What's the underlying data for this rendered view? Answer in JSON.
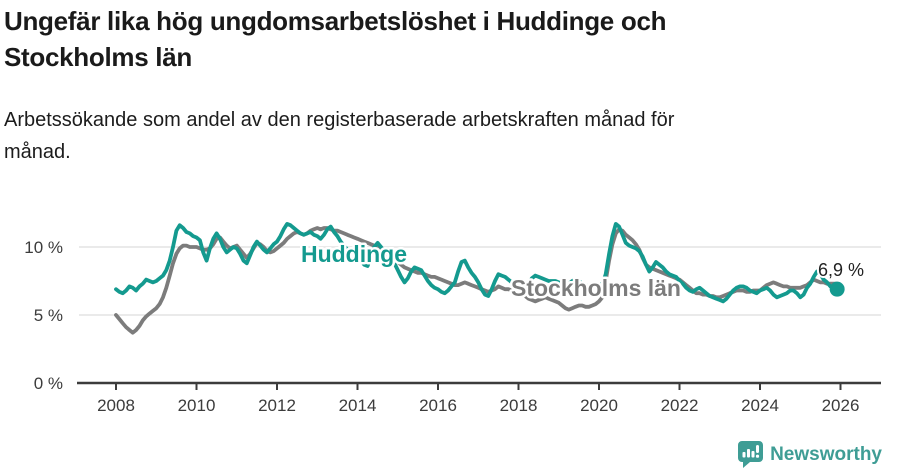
{
  "header": {
    "title": "Ungefär lika hög ungdomsarbetslöshet i Huddinge och Stockholms län",
    "subtitle": "Arbetssökande som andel av den registerbaserade arbetskraften månad för månad."
  },
  "footer": {
    "brand": "Newsworthy",
    "brand_color": "#3f9d95",
    "logo_icon": "bar-chart-speech-bubble-icon"
  },
  "chart_data": {
    "type": "line",
    "title": "Ungefär lika hög ungdomsarbetslöshet i Huddinge och Stockholms län",
    "subtitle": "Arbetssökande som andel av den registerbaserade arbetskraften månad för månad.",
    "unit": "%",
    "x_start_year": 2008,
    "points_per_year": 12,
    "x_axis": {
      "ticks": [
        2008,
        2010,
        2012,
        2014,
        2016,
        2018,
        2020,
        2022,
        2024,
        2026
      ]
    },
    "y_axis": {
      "ticks": [
        {
          "value": 0,
          "label": "0 %"
        },
        {
          "value": 5,
          "label": "5 %"
        },
        {
          "value": 10,
          "label": "10 %"
        }
      ],
      "ylim": [
        0,
        13.1
      ]
    },
    "grid": true,
    "colors": {
      "accent_teal": "#149a8f",
      "neutral_gray": "#7c7c7c",
      "gridline": "#dedede",
      "axis": "#3c3c3c"
    },
    "series": [
      {
        "name": "Huddinge",
        "color": "#149a8f",
        "values": [
          6.9,
          6.7,
          6.6,
          6.8,
          7.1,
          7.0,
          6.8,
          7.1,
          7.3,
          7.6,
          7.5,
          7.4,
          7.5,
          7.7,
          7.9,
          8.3,
          9.0,
          10.0,
          11.2,
          11.6,
          11.4,
          11.1,
          11.0,
          10.8,
          10.7,
          10.5,
          9.6,
          9.0,
          9.9,
          10.6,
          11.0,
          10.6,
          10.0,
          9.6,
          9.8,
          10.0,
          9.9,
          9.5,
          9.0,
          8.8,
          9.4,
          10.0,
          10.4,
          10.1,
          9.8,
          9.6,
          9.9,
          10.2,
          10.4,
          10.8,
          11.3,
          11.7,
          11.6,
          11.4,
          11.2,
          11.0,
          10.9,
          11.0,
          11.1,
          10.9,
          10.8,
          10.6,
          10.9,
          11.3,
          11.5,
          11.1,
          10.8,
          10.4,
          10.1,
          9.8,
          9.7,
          9.6,
          9.4,
          9.0,
          8.7,
          8.6,
          9.3,
          10.0,
          10.3,
          10.0,
          9.7,
          9.3,
          9.0,
          8.8,
          8.3,
          7.8,
          7.4,
          7.7,
          8.2,
          8.5,
          8.4,
          8.3,
          7.9,
          7.5,
          7.2,
          7.0,
          6.9,
          6.7,
          6.6,
          6.8,
          7.1,
          7.4,
          8.2,
          8.9,
          9.0,
          8.5,
          8.1,
          7.8,
          7.4,
          6.9,
          6.5,
          6.4,
          6.9,
          7.5,
          8.0,
          7.9,
          7.8,
          7.6,
          7.4,
          7.2,
          7.1,
          7.1,
          7.2,
          7.4,
          7.7,
          7.9,
          7.8,
          7.7,
          7.6,
          7.5,
          7.5,
          7.5,
          7.4,
          7.3,
          7.2,
          7.3,
          7.5,
          7.6,
          7.5,
          7.3,
          7.2,
          7.1,
          7.1,
          7.2,
          7.2,
          7.3,
          8.0,
          9.5,
          10.8,
          11.7,
          11.5,
          10.9,
          10.3,
          10.1,
          10.0,
          9.9,
          9.7,
          9.3,
          8.7,
          8.2,
          8.5,
          8.9,
          8.7,
          8.5,
          8.2,
          8.0,
          7.9,
          7.8,
          7.5,
          7.3,
          7.0,
          6.8,
          6.7,
          6.9,
          7.0,
          6.8,
          6.6,
          6.4,
          6.3,
          6.2,
          6.1,
          6.0,
          6.2,
          6.5,
          6.8,
          7.0,
          7.1,
          7.1,
          7.0,
          6.8,
          6.7,
          6.6,
          6.8,
          6.9,
          7.0,
          6.8,
          6.5,
          6.3,
          6.4,
          6.5,
          6.6,
          6.8,
          6.8,
          6.6,
          6.3,
          6.5,
          7.0,
          7.3,
          7.8,
          8.2,
          8.0,
          7.6,
          7.4,
          7.1,
          7.0,
          6.9
        ]
      },
      {
        "name": "Stockholms län",
        "color": "#7c7c7c",
        "values": [
          5.0,
          4.7,
          4.4,
          4.1,
          3.9,
          3.7,
          3.9,
          4.2,
          4.6,
          4.9,
          5.1,
          5.3,
          5.5,
          5.8,
          6.3,
          7.0,
          7.9,
          8.8,
          9.5,
          9.9,
          10.1,
          10.1,
          10.0,
          10.0,
          10.0,
          9.9,
          9.8,
          9.8,
          9.9,
          10.2,
          10.6,
          10.7,
          10.4,
          10.1,
          9.9,
          10.0,
          10.1,
          9.8,
          9.5,
          9.2,
          9.5,
          9.9,
          10.3,
          10.2,
          10.0,
          9.7,
          9.6,
          9.7,
          9.9,
          10.1,
          10.3,
          10.6,
          10.8,
          11.0,
          11.1,
          11.0,
          10.9,
          11.0,
          11.2,
          11.3,
          11.4,
          11.3,
          11.4,
          11.4,
          11.3,
          11.2,
          11.2,
          11.1,
          11.0,
          10.9,
          10.8,
          10.7,
          10.6,
          10.5,
          10.4,
          10.3,
          10.2,
          10.1,
          10.0,
          9.9,
          9.7,
          9.5,
          9.3,
          9.1,
          8.9,
          8.7,
          8.5,
          8.4,
          8.3,
          8.2,
          8.1,
          8.1,
          8.0,
          7.9,
          7.8,
          7.8,
          7.7,
          7.6,
          7.5,
          7.4,
          7.3,
          7.2,
          7.2,
          7.3,
          7.4,
          7.3,
          7.2,
          7.1,
          7.0,
          6.9,
          6.8,
          6.7,
          6.8,
          6.9,
          7.1,
          7.0,
          6.9,
          6.9,
          6.8,
          6.7,
          6.6,
          6.5,
          6.4,
          6.2,
          6.1,
          6.0,
          6.1,
          6.2,
          6.3,
          6.2,
          6.1,
          6.0,
          5.9,
          5.7,
          5.5,
          5.4,
          5.5,
          5.6,
          5.7,
          5.7,
          5.6,
          5.6,
          5.7,
          5.8,
          6.0,
          6.3,
          7.5,
          9.0,
          10.2,
          11.0,
          11.3,
          11.2,
          10.9,
          10.7,
          10.5,
          10.2,
          9.8,
          9.2,
          8.7,
          8.5,
          8.4,
          8.3,
          8.2,
          8.1,
          8.0,
          7.9,
          7.8,
          7.7,
          7.6,
          7.4,
          7.2,
          7.0,
          6.8,
          6.6,
          6.6,
          6.5,
          6.5,
          6.4,
          6.4,
          6.3,
          6.3,
          6.4,
          6.5,
          6.6,
          6.7,
          6.8,
          6.8,
          6.8,
          6.7,
          6.7,
          6.8,
          6.8,
          6.8,
          7.0,
          7.2,
          7.3,
          7.4,
          7.3,
          7.2,
          7.1,
          7.1,
          7.0,
          7.0,
          7.0,
          7.0,
          7.1,
          7.2,
          7.4,
          7.6,
          7.5,
          7.4,
          7.4,
          7.3,
          7.3,
          7.3,
          7.3
        ]
      }
    ],
    "series_labels": [
      {
        "text": "Huddinge",
        "color": "#149a8f",
        "x": 354,
        "y": 262
      },
      {
        "text": "Stockholms län",
        "color": "#7c7c7c",
        "x": 596,
        "y": 296
      }
    ],
    "end_annotation": {
      "text": "6,9 %",
      "value": 6.9,
      "series": "Huddinge",
      "x": 864,
      "y": 276
    },
    "legend_position": "inline-labels"
  }
}
